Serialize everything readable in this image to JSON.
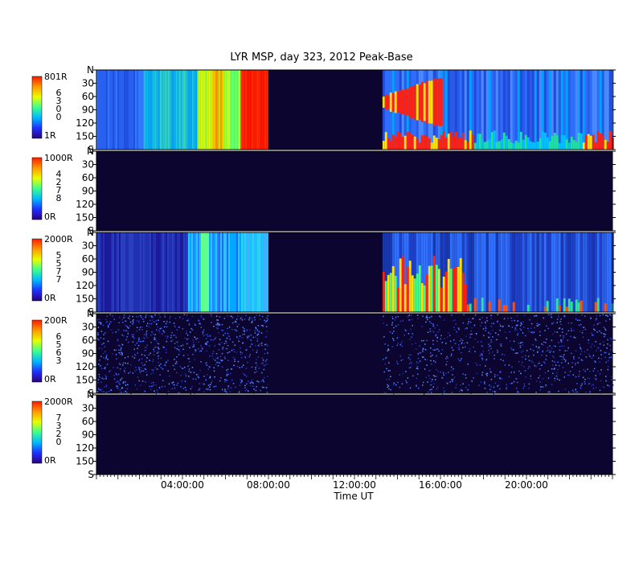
{
  "title": "LYR MSP, day 323, 2012 Peak-Base",
  "chart_data": {
    "type": "heatmap",
    "title": "LYR MSP, day 323, 2012 Peak-Base",
    "xlabel": "Time UT",
    "x_range_hours": [
      0,
      24
    ],
    "x_ticks": [
      {
        "hour": 4,
        "label": "04:00:00"
      },
      {
        "hour": 8,
        "label": "08:00:00"
      },
      {
        "hour": 12,
        "label": "12:00:00"
      },
      {
        "hour": 16,
        "label": "16:00:00"
      },
      {
        "hour": 20,
        "label": "20:00:00"
      }
    ],
    "y_range_deg": [
      0,
      180
    ],
    "y_ticks": [
      {
        "deg": 0,
        "label": "N"
      },
      {
        "deg": 30,
        "label": "30"
      },
      {
        "deg": 60,
        "label": "60"
      },
      {
        "deg": 90,
        "label": "90"
      },
      {
        "deg": 120,
        "label": "120"
      },
      {
        "deg": 150,
        "label": "150"
      },
      {
        "deg": 180,
        "label": "S"
      }
    ],
    "data_gap_hours": [
      8.0,
      13.3
    ],
    "colorbar_colors": [
      "#2a007f",
      "#1f2fff",
      "#00b8ff",
      "#3cff90",
      "#e8ff00",
      "#ff9a00",
      "#ff1a00"
    ],
    "panels": [
      {
        "scale_max": "801R",
        "scale_min": "1R",
        "wavelength": "6300",
        "level": "high"
      },
      {
        "scale_max": "1000R",
        "scale_min": "0R",
        "wavelength": "4278",
        "level": "none"
      },
      {
        "scale_max": "2000R",
        "scale_min": "0R",
        "wavelength": "5577",
        "level": "medium"
      },
      {
        "scale_max": "200R",
        "scale_min": "0R",
        "wavelength": "6563",
        "level": "noise"
      },
      {
        "scale_max": "2000R",
        "scale_min": "0R",
        "wavelength": "7320",
        "level": "none"
      }
    ]
  }
}
